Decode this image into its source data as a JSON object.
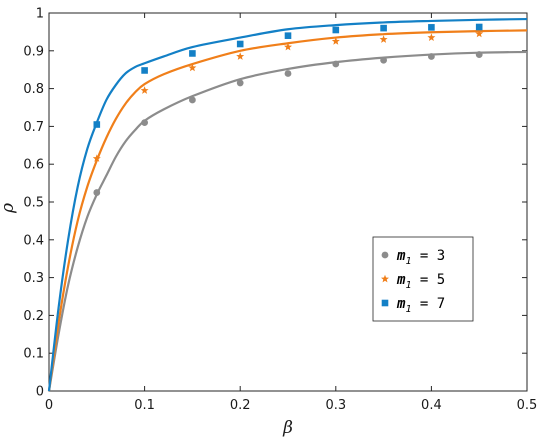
{
  "chart_data": {
    "type": "line",
    "xlabel": "β",
    "ylabel": "ρ",
    "xlim": [
      0,
      0.5
    ],
    "ylim": [
      0,
      1
    ],
    "xticks": [
      0,
      0.1,
      0.2,
      0.3,
      0.4,
      0.5
    ],
    "xtick_labels": [
      "0",
      "0.1",
      "0.2",
      "0.3",
      "0.4",
      "0.5"
    ],
    "yticks": [
      0,
      0.1,
      0.2,
      0.3,
      0.4,
      0.5,
      0.6,
      0.7,
      0.8,
      0.9,
      1
    ],
    "ytick_labels": [
      "0",
      "0.1",
      "0.2",
      "0.3",
      "0.4",
      "0.5",
      "0.6",
      "0.7",
      "0.8",
      "0.9",
      "1"
    ],
    "grid": false,
    "legend_position": "lower-right",
    "series": [
      {
        "legend": {
          "var": "m",
          "sub": "1",
          "eq": " = 3"
        },
        "color": "#8c8c8c",
        "marker": "circle",
        "curve": {
          "x": [
            0,
            0.01,
            0.02,
            0.03,
            0.04,
            0.05,
            0.06,
            0.07,
            0.08,
            0.09,
            0.1,
            0.12,
            0.15,
            0.2,
            0.25,
            0.3,
            0.35,
            0.4,
            0.45,
            0.5
          ],
          "y": [
            0,
            0.15,
            0.28,
            0.38,
            0.46,
            0.52,
            0.57,
            0.62,
            0.66,
            0.69,
            0.715,
            0.745,
            0.78,
            0.825,
            0.852,
            0.87,
            0.882,
            0.89,
            0.895,
            0.897
          ]
        },
        "points": {
          "x": [
            0.05,
            0.1,
            0.15,
            0.2,
            0.25,
            0.3,
            0.35,
            0.4,
            0.45
          ],
          "y": [
            0.525,
            0.71,
            0.77,
            0.815,
            0.84,
            0.865,
            0.875,
            0.885,
            0.89
          ]
        }
      },
      {
        "legend": {
          "var": "m",
          "sub": "1",
          "eq": " = 5"
        },
        "color": "#f07f1a",
        "marker": "star",
        "curve": {
          "x": [
            0,
            0.01,
            0.02,
            0.03,
            0.04,
            0.05,
            0.06,
            0.07,
            0.08,
            0.09,
            0.1,
            0.12,
            0.15,
            0.2,
            0.25,
            0.3,
            0.35,
            0.4,
            0.45,
            0.5
          ],
          "y": [
            0,
            0.18,
            0.33,
            0.45,
            0.54,
            0.61,
            0.67,
            0.72,
            0.76,
            0.79,
            0.812,
            0.838,
            0.865,
            0.9,
            0.92,
            0.935,
            0.944,
            0.949,
            0.952,
            0.954
          ]
        },
        "points": {
          "x": [
            0.05,
            0.1,
            0.15,
            0.2,
            0.25,
            0.3,
            0.35,
            0.4,
            0.45
          ],
          "y": [
            0.615,
            0.795,
            0.855,
            0.885,
            0.91,
            0.925,
            0.93,
            0.935,
            0.945
          ]
        }
      },
      {
        "legend": {
          "var": "m",
          "sub": "1",
          "eq": " = 7"
        },
        "color": "#1380c6",
        "marker": "square",
        "curve": {
          "x": [
            0,
            0.01,
            0.02,
            0.03,
            0.04,
            0.05,
            0.06,
            0.07,
            0.08,
            0.09,
            0.1,
            0.12,
            0.15,
            0.2,
            0.25,
            0.3,
            0.35,
            0.4,
            0.45,
            0.5
          ],
          "y": [
            0,
            0.22,
            0.4,
            0.54,
            0.64,
            0.71,
            0.77,
            0.81,
            0.84,
            0.857,
            0.867,
            0.885,
            0.91,
            0.935,
            0.957,
            0.968,
            0.975,
            0.979,
            0.982,
            0.984
          ]
        },
        "points": {
          "x": [
            0.05,
            0.1,
            0.15,
            0.2,
            0.25,
            0.3,
            0.35,
            0.4,
            0.45
          ],
          "y": [
            0.705,
            0.848,
            0.893,
            0.918,
            0.94,
            0.955,
            0.96,
            0.962,
            0.963
          ]
        }
      }
    ]
  }
}
